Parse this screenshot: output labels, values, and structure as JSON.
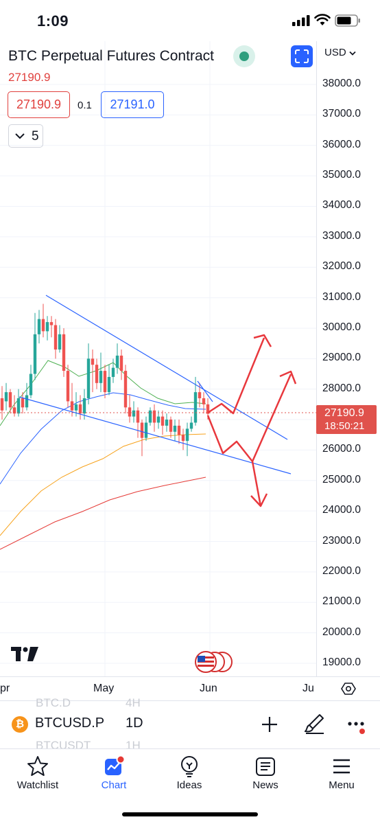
{
  "status_bar": {
    "time": "1:09"
  },
  "chart_header": {
    "symbol_title": "BTC Perpetual Futures Contract",
    "last_price": "27190.9",
    "bid": "27190.9",
    "spread": "0.1",
    "ask": "27191.0",
    "indicator_count": "5"
  },
  "price_axis": {
    "currency": "USD",
    "labels": [
      "38000.0",
      "37000.0",
      "36000.0",
      "35000.0",
      "34000.0",
      "33000.0",
      "32000.0",
      "31000.0",
      "30000.0",
      "29000.0",
      "28000.0",
      "27000.0",
      "26000.0",
      "25000.0",
      "24000.0",
      "23000.0",
      "22000.0",
      "21000.0",
      "20000.0",
      "19000.0"
    ],
    "current_price": "27190.9",
    "countdown": "18:50:21"
  },
  "time_axis": {
    "labels": [
      "pr",
      "May",
      "Jun",
      "Ju"
    ]
  },
  "symbol_bar": {
    "symbol": "BTCUSD.P",
    "interval": "1D",
    "ghost_above": {
      "symbol": "BTC.D",
      "interval": "4H"
    },
    "ghost_below": {
      "symbol": "BTCUSDT",
      "interval": "1H"
    }
  },
  "bottom_nav": {
    "items": [
      {
        "label": "Watchlist",
        "icon": "star-icon"
      },
      {
        "label": "Chart",
        "icon": "chart-icon"
      },
      {
        "label": "Ideas",
        "icon": "lightbulb-icon"
      },
      {
        "label": "News",
        "icon": "newspaper-icon"
      },
      {
        "label": "Menu",
        "icon": "hamburger-icon"
      }
    ],
    "active": "Chart"
  },
  "colors": {
    "up": "#26a69a",
    "down": "#ef5350",
    "accent": "#2962ff",
    "annotation_red": "#e8383d",
    "trendline_blue": "#2962ff",
    "ma_green": "#4caf50",
    "ma_blue": "#2962ff",
    "ma_orange": "#f7a21b",
    "ma_red": "#e53935"
  }
}
